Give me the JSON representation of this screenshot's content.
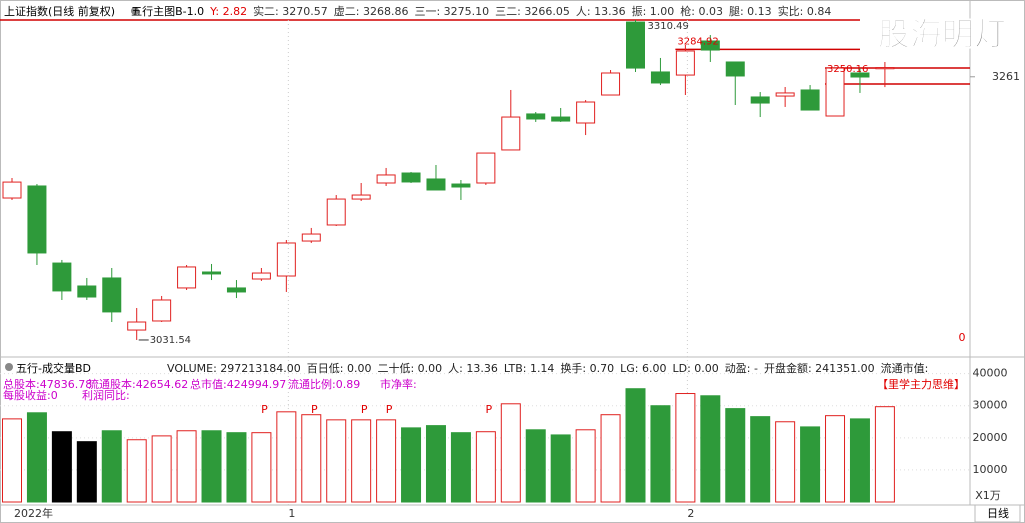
{
  "watermark": "股海明灯",
  "period_label": "日线",
  "chart_data": [
    {
      "type": "candlestick",
      "title": "上证指数(日线 前复权)",
      "indicator": "五行主图B-1.0",
      "info": [
        {
          "text": "Y: 2.82",
          "color": "#e00000"
        },
        {
          "text": "实二: 3270.57",
          "color": "#333333"
        },
        {
          "text": "虚二: 3268.86",
          "color": "#333333"
        },
        {
          "text": "三一: 3275.10",
          "color": "#333333"
        },
        {
          "text": "三二: 3266.05",
          "color": "#333333"
        },
        {
          "text": "人: 13.36",
          "color": "#333333"
        },
        {
          "text": "振: 1.00",
          "color": "#333333"
        },
        {
          "text": "枪: 0.03",
          "color": "#333333"
        },
        {
          "text": "腿: 0.13",
          "color": "#333333"
        },
        {
          "text": "实比: 0.84",
          "color": "#333333"
        }
      ],
      "up_color": "#e0201f",
      "down_color": "#2e9a3a",
      "open": [
        3155.3,
        3165.8,
        3098.6,
        3078.6,
        3085.6,
        3040.2,
        3048.1,
        3076.9,
        3090.8,
        3076.9,
        3084.7,
        3087.3,
        3117.8,
        3131.8,
        3154.4,
        3168.4,
        3177.1,
        3171.9,
        3167.5,
        3168.4,
        3197.2,
        3228.6,
        3225.9,
        3220.7,
        3245.1,
        3308.7,
        3265.2,
        3262.5,
        3292.2,
        3273.9,
        3243.4,
        3244.2,
        3249.5,
        3226.8,
        3264.3,
        3268.0
      ],
      "close": [
        3169.2,
        3107.4,
        3074.3,
        3069.0,
        3056.0,
        3047.2,
        3066.4,
        3095.2,
        3089.1,
        3073.4,
        3089.9,
        3116.1,
        3123.9,
        3154.4,
        3157.9,
        3175.4,
        3169.3,
        3162.3,
        3164.9,
        3194.5,
        3225.9,
        3224.2,
        3222.4,
        3239.0,
        3264.3,
        3268.6,
        3255.6,
        3283.5,
        3284.3,
        3261.7,
        3238.1,
        3246.9,
        3232.0,
        3268.6,
        3260.8,
        3269.0
      ],
      "high": [
        3172.7,
        3167.5,
        3101.3,
        3085.6,
        3094.3,
        3059.4,
        3069.9,
        3096.9,
        3097.8,
        3083.8,
        3094.3,
        3118.7,
        3129.2,
        3157.9,
        3168.4,
        3181.5,
        3178.0,
        3184.1,
        3171.0,
        3194.5,
        3249.5,
        3230.3,
        3233.8,
        3240.7,
        3266.9,
        3310.49,
        3277.4,
        3288.7,
        3297.4,
        3273.9,
        3247.7,
        3252.1,
        3253.8,
        3268.6,
        3268.6,
        3273.9
      ],
      "low": [
        3153.6,
        3096.9,
        3066.4,
        3066.4,
        3047.2,
        3031.54,
        3047.2,
        3075.1,
        3083.8,
        3068.1,
        3083.0,
        3073.4,
        3116.1,
        3130.9,
        3152.7,
        3165.8,
        3168.4,
        3162.3,
        3153.6,
        3166.7,
        3197.2,
        3221.6,
        3221.6,
        3210.2,
        3245.1,
        3265.2,
        3253.8,
        3245.1,
        3273.9,
        3236.4,
        3225.9,
        3234.7,
        3232.0,
        3226.8,
        3246.9,
        3252.0
      ],
      "ylim": [
        3022.8,
        3310.5
      ],
      "yticks": [
        3261
      ],
      "bottom_label": "0",
      "levels": [
        {
          "value": 3310.49,
          "start": 0
        },
        {
          "value": 3284.92,
          "start": 27
        },
        {
          "value": 3268.6,
          "start": 33
        },
        {
          "value": 3254.7,
          "start": 33
        }
      ],
      "annotations": [
        {
          "value": 3310.49,
          "at": 25
        },
        {
          "value": 3031.54,
          "at": 5
        },
        {
          "value": 3284.92,
          "at": 27
        },
        {
          "value": 3250.16,
          "at": 33
        }
      ]
    },
    {
      "type": "bar",
      "title": "五行-成交量BD",
      "info": [
        "VOLUME: 297213184.00",
        "百日低: 0.00",
        "二十低: 0.00",
        "人: 13.36",
        "LTB: 1.14",
        "换手: 0.70",
        "LG: 6.00",
        "LD: 0.00",
        "动盈: -",
        "开盘金额: 241351.00",
        "流通市值:"
      ],
      "overlay": [
        "总股本:47836.78",
        "流通股本:42654.62",
        "总市值:424994.97",
        "流通比例:0.89",
        "市净率:",
        "每股收益:0",
        "利润同比:"
      ],
      "tag": "【里学主力思维】",
      "markers": {
        "label": "P",
        "at": [
          10,
          12,
          14,
          15,
          19
        ]
      },
      "values": [
        25900,
        27800,
        21900,
        18800,
        22200,
        19400,
        20600,
        22200,
        22200,
        21600,
        21600,
        28100,
        27200,
        25600,
        25600,
        25600,
        23100,
        23800,
        21600,
        21900,
        30600,
        22500,
        20900,
        22500,
        27200,
        35300,
        30000,
        33800,
        33100,
        29100,
        26600,
        25000,
        23400,
        26900,
        25900,
        29700
      ],
      "colors": [
        "#e0201f",
        "#2e9a3a",
        "#000000",
        "#000000",
        "#2e9a3a",
        "#e0201f",
        "#e0201f",
        "#e0201f",
        "#2e9a3a",
        "#2e9a3a",
        "#e0201f",
        "#e0201f",
        "#e0201f",
        "#e0201f",
        "#e0201f",
        "#e0201f",
        "#2e9a3a",
        "#2e9a3a",
        "#2e9a3a",
        "#e0201f",
        "#e0201f",
        "#2e9a3a",
        "#2e9a3a",
        "#e0201f",
        "#e0201f",
        "#2e9a3a",
        "#2e9a3a",
        "#e0201f",
        "#2e9a3a",
        "#2e9a3a",
        "#2e9a3a",
        "#e0201f",
        "#2e9a3a",
        "#e0201f",
        "#2e9a3a",
        "#e0201f"
      ],
      "hollow_color": "#e0201f",
      "ylim": [
        0,
        43000
      ],
      "yticks": [
        10000,
        20000,
        30000,
        40000
      ],
      "unit_label": "X1万",
      "xticks": [
        {
          "at": 0,
          "label": "2022年"
        },
        {
          "at": 11,
          "label": "1"
        },
        {
          "at": 27,
          "label": "2"
        }
      ]
    }
  ]
}
